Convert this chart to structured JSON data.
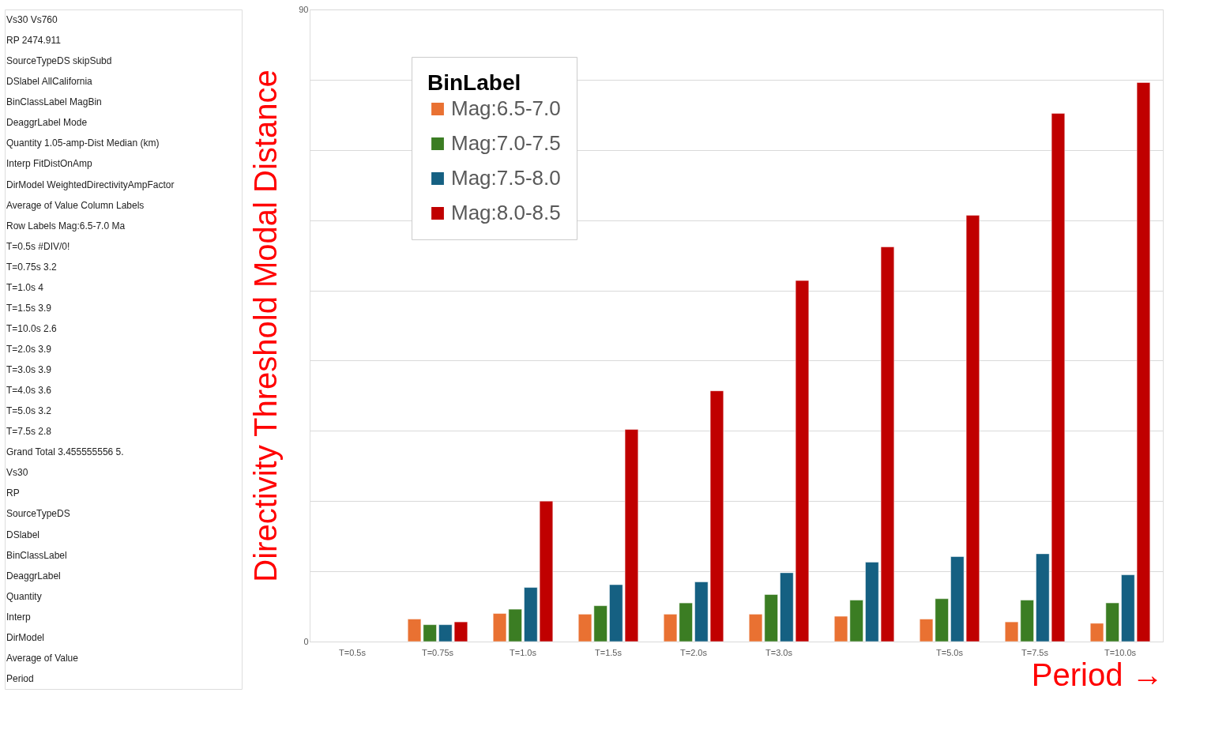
{
  "chart_data": {
    "type": "bar",
    "xlabel": "Period →",
    "ylabel": "Directivity Threshold Modal Distance",
    "legend_title": "BinLabel",
    "categories": [
      "T=0.5s",
      "T=0.75s",
      "T=1.0s",
      "T=1.5s",
      "T=2.0s",
      "T=3.0s",
      null,
      "T=5.0s",
      "T=7.5s",
      "T=10.0s"
    ],
    "series": [
      {
        "name": "Mag:6.5-7.0",
        "color": "#e97132",
        "values": [
          null,
          3.2,
          4,
          3.9,
          3.9,
          3.9,
          3.6,
          3.2,
          2.8,
          2.6
        ]
      },
      {
        "name": "Mag:7.0-7.5",
        "color": "#3b7d23",
        "values": [
          null,
          2.4,
          4.6,
          5.1,
          5.5,
          6.7,
          5.9,
          6.1,
          5.9,
          5.5
        ]
      },
      {
        "name": "Mag:7.5-8.0",
        "color": "#156082",
        "values": [
          null,
          2.4,
          7.7,
          8.1,
          8.5,
          9.8,
          11.3,
          12.1,
          12.5,
          9.5
        ]
      },
      {
        "name": "Mag:8.0-8.5",
        "color": "#c00000",
        "values": [
          null,
          2.8,
          20.0,
          30.2,
          35.7,
          51.4,
          56.2,
          60.7,
          75.2,
          79.6
        ]
      }
    ],
    "ylim": [
      0,
      90
    ],
    "yticks": [
      0,
      {
        "value": 10,
        "label": null
      },
      {
        "value": 20,
        "label": null
      },
      {
        "value": 30,
        "label": null
      },
      {
        "value": 40,
        "label": null
      },
      {
        "value": 50,
        "label": null
      },
      {
        "value": 60,
        "label": null
      },
      {
        "value": 70,
        "label": null
      },
      {
        "value": 80,
        "label": null
      },
      90
    ],
    "grid": "y",
    "legend": "top left",
    "annotations": [
      "Vs30    Vs760",
      "RP    2474.911",
      "SourceTypeDS    skipSubd",
      "DSlabel    AllCalifornia",
      "BinClassLabel    MagBin",
      "DeaggrLabel    Mode",
      "Quantity    1.05-amp-Dist Median (km)",
      "Interp    FitDistOnAmp",
      "DirModel    WeightedDirectivityAmpFactor",
      "Average of Value    Column Labels",
      "Row Labels    Mag:6.5-7.0    Ma",
      "T=0.5s    #DIV/0!",
      "T=0.75s    3.2",
      "T=1.0s    4",
      "T=1.5s    3.9",
      "T=10.0s    2.6",
      "T=2.0s    3.9",
      "T=3.0s    3.9",
      "T=4.0s    3.6",
      "T=5.0s    3.2",
      "T=7.5s    2.8",
      "Grand Total    3.455555556    5.",
      "Vs30",
      "RP",
      "SourceTypeDS",
      "DSlabel",
      "BinClassLabel",
      "DeaggrLabel",
      "Quantity",
      "Interp",
      "DirModel",
      "Average of Value",
      "Period"
    ]
  }
}
